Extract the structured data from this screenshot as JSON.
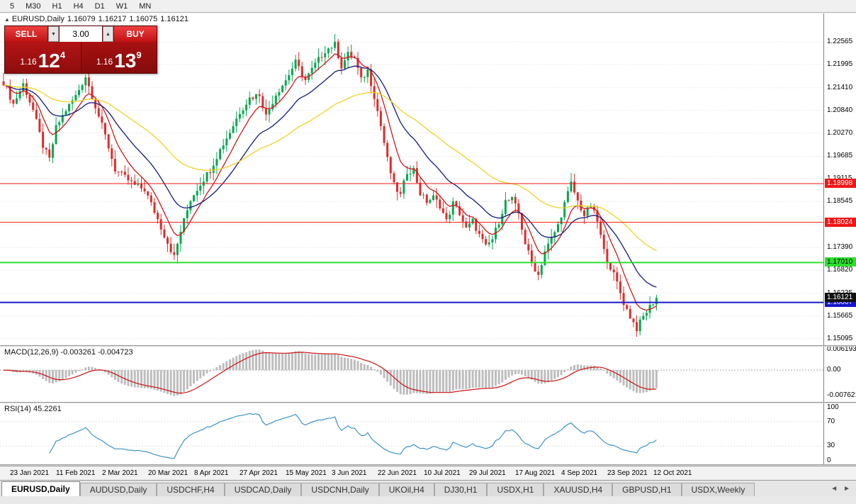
{
  "toolbar": {
    "timeframes": [
      "5",
      "M30",
      "H1",
      "H4",
      "D1",
      "W1",
      "MN"
    ]
  },
  "window": {
    "title_symbol": "EURUSD,Daily",
    "title_icon": "▲",
    "ohlc": {
      "open": "1.16079",
      "high": "1.16217",
      "low": "1.16075",
      "close": "1.16121"
    }
  },
  "trade_panel": {
    "sell_label": "SELL",
    "buy_label": "BUY",
    "lot": "3.00",
    "lot_down_icon": "▼",
    "lot_up_icon": "▲",
    "sell_price": {
      "prefix": "1.16",
      "big": "12",
      "sup": "4"
    },
    "buy_price": {
      "prefix": "1.16",
      "big": "13",
      "sup": "9"
    }
  },
  "tabs": {
    "items": [
      "EURUSD,Daily",
      "AUDUSD,Daily",
      "USDCHF,H4",
      "USDCAD,Daily",
      "USDCNH,Daily",
      "UKOil,H4",
      "DJ30,H1",
      "USDX,H1",
      "XAUUSD,H4",
      "GBPUSD,H1",
      "USDX,Weekly"
    ],
    "active_index": 0,
    "scroll_left": "◄",
    "scroll_right": "►"
  },
  "chart_data": {
    "type": "candlestick",
    "symbol": "EURUSD",
    "period": "Daily",
    "title": "EURUSD,Daily 1.16079 1.16217 1.16075 1.16121",
    "n_candles": 200,
    "price_range": [
      1.1493,
      1.2328
    ],
    "up_color": "#00a84f",
    "down_color": "#df2b2b",
    "grid_color": "#d8d8d8",
    "noise_amp": 0.0016,
    "wick_amp": 0.0022,
    "last_close": 1.16121,
    "close_anchors": [
      [
        0,
        1.2155
      ],
      [
        3,
        1.21
      ],
      [
        6,
        1.215
      ],
      [
        9,
        1.2085
      ],
      [
        12,
        1.1995
      ],
      [
        14,
        1.196
      ],
      [
        16,
        1.204
      ],
      [
        19,
        1.2085
      ],
      [
        22,
        1.212
      ],
      [
        25,
        1.217
      ],
      [
        28,
        1.2095
      ],
      [
        31,
        1.202
      ],
      [
        34,
        1.1935
      ],
      [
        37,
        1.1915
      ],
      [
        40,
        1.1895
      ],
      [
        43,
        1.1885
      ],
      [
        46,
        1.183
      ],
      [
        49,
        1.177
      ],
      [
        52,
        1.1715
      ],
      [
        54,
        1.178
      ],
      [
        57,
        1.186
      ],
      [
        60,
        1.19
      ],
      [
        63,
        1.1935
      ],
      [
        66,
        1.1985
      ],
      [
        69,
        1.203
      ],
      [
        72,
        1.208
      ],
      [
        75,
        1.2115
      ],
      [
        78,
        1.2125
      ],
      [
        80,
        1.207
      ],
      [
        83,
        1.2125
      ],
      [
        86,
        1.216
      ],
      [
        89,
        1.2205
      ],
      [
        92,
        1.216
      ],
      [
        95,
        1.22
      ],
      [
        98,
        1.2235
      ],
      [
        101,
        1.225
      ],
      [
        103,
        1.2195
      ],
      [
        105,
        1.2225
      ],
      [
        107,
        1.2215
      ],
      [
        109,
        1.216
      ],
      [
        111,
        1.2185
      ],
      [
        113,
        1.212
      ],
      [
        115,
        1.2045
      ],
      [
        117,
        1.196
      ],
      [
        119,
        1.1895
      ],
      [
        121,
        1.187
      ],
      [
        123,
        1.193
      ],
      [
        125,
        1.1935
      ],
      [
        127,
        1.1875
      ],
      [
        129,
        1.1855
      ],
      [
        131,
        1.1865
      ],
      [
        133,
        1.1845
      ],
      [
        135,
        1.1805
      ],
      [
        137,
        1.185
      ],
      [
        139,
        1.1825
      ],
      [
        141,
        1.1785
      ],
      [
        143,
        1.1805
      ],
      [
        145,
        1.177
      ],
      [
        147,
        1.174
      ],
      [
        149,
        1.176
      ],
      [
        151,
        1.1805
      ],
      [
        153,
        1.1855
      ],
      [
        155,
        1.186
      ],
      [
        157,
        1.1825
      ],
      [
        159,
        1.175
      ],
      [
        161,
        1.17
      ],
      [
        163,
        1.167
      ],
      [
        165,
        1.173
      ],
      [
        167,
        1.176
      ],
      [
        169,
        1.1795
      ],
      [
        171,
        1.185
      ],
      [
        173,
        1.19
      ],
      [
        175,
        1.1855
      ],
      [
        177,
        1.182
      ],
      [
        179,
        1.1845
      ],
      [
        181,
        1.1805
      ],
      [
        183,
        1.173
      ],
      [
        185,
        1.169
      ],
      [
        187,
        1.165
      ],
      [
        189,
        1.16
      ],
      [
        191,
        1.1565
      ],
      [
        193,
        1.1535
      ],
      [
        195,
        1.1565
      ],
      [
        197,
        1.159
      ],
      [
        199,
        1.16121
      ]
    ],
    "y_tick_labels": [
      "1.22565",
      "1.21995",
      "1.21410",
      "1.20840",
      "1.20270",
      "1.19685",
      "1.19115",
      "1.18545",
      "1.17960",
      "1.17390",
      "1.16820",
      "1.16235",
      "1.15665",
      "1.15095"
    ],
    "x_labels": [
      "23 Jan 2021",
      "11 Feb 2021",
      "2 Mar 2021",
      "20 Mar 2021",
      "8 Apr 2021",
      "27 Apr 2021",
      "15 May 2021",
      "3 Jun 2021",
      "22 Jun 2021",
      "10 Jul 2021",
      "29 Jul 2021",
      "17 Aug 2021",
      "4 Sep 2021",
      "23 Sep 2021",
      "12 Oct 2021"
    ],
    "x_label_first_index": 2,
    "x_label_step": 14,
    "hlines": [
      {
        "price": 1.18998,
        "label": "1.18998",
        "color": "#f21515",
        "text_color": "#ffffff",
        "width": 1
      },
      {
        "price": 1.18024,
        "label": "1.18024",
        "color": "#f21515",
        "text_color": "#ffffff",
        "width": 1
      },
      {
        "price": 1.1701,
        "label": "1.17010",
        "color": "#2ede2e",
        "text_color": "#000000",
        "width": 2
      },
      {
        "price": 1.16007,
        "label": "1.16007",
        "color": "#1616c8",
        "text_color": "#ffffff",
        "width": 2
      }
    ],
    "current_price": {
      "value": 1.16121,
      "label": "1.16121",
      "bg": "#111111",
      "text_color": "#ffffff"
    },
    "moving_averages": [
      {
        "name": "ma-fast",
        "period": 8,
        "color": "#d01818"
      },
      {
        "name": "ma-mid",
        "period": 21,
        "color": "#151a7a"
      },
      {
        "name": "ma-slow",
        "period": 55,
        "color": "#f0d322"
      }
    ],
    "macd": {
      "title": "MACD(12,26,9) -0.003261 -0.004723",
      "fast": 12,
      "slow": 26,
      "signal": 9,
      "range": [
        -0.0095,
        0.007
      ],
      "hist_color": "#bdbdbd",
      "signal_color": "#cc1111",
      "labels": {
        "max": "0.006193",
        "zero": "0.00",
        "min": "-0.007621"
      }
    },
    "rsi": {
      "title": "RSI(14) 45.2261",
      "period": 14,
      "color": "#3d93c9",
      "levels": [
        70,
        30
      ],
      "ticks": [
        {
          "v": 100,
          "label": "100"
        },
        {
          "v": 70,
          "label": "70"
        },
        {
          "v": 30,
          "label": "30"
        },
        {
          "v": 0,
          "label": "0"
        }
      ]
    }
  }
}
